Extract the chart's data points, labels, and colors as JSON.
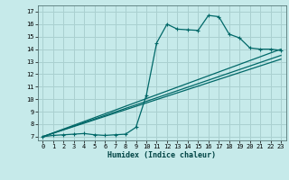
{
  "xlabel": "Humidex (Indice chaleur)",
  "bg_color": "#c6eaea",
  "grid_color": "#aad0d0",
  "line_color": "#006868",
  "xlim": [
    -0.5,
    23.5
  ],
  "ylim": [
    6.7,
    17.5
  ],
  "xticks": [
    0,
    1,
    2,
    3,
    4,
    5,
    6,
    7,
    8,
    9,
    10,
    11,
    12,
    13,
    14,
    15,
    16,
    17,
    18,
    19,
    20,
    21,
    22,
    23
  ],
  "yticks": [
    7,
    8,
    9,
    10,
    11,
    12,
    13,
    14,
    15,
    16,
    17
  ],
  "line1_x": [
    0,
    1,
    2,
    3,
    4,
    5,
    6,
    7,
    8,
    9,
    10,
    11,
    12,
    13,
    14,
    15,
    16,
    17,
    18,
    19,
    20,
    21,
    22,
    23
  ],
  "line1_y": [
    7.0,
    7.1,
    7.15,
    7.2,
    7.25,
    7.15,
    7.1,
    7.15,
    7.2,
    7.75,
    10.3,
    14.5,
    16.0,
    15.6,
    15.55,
    15.5,
    16.7,
    16.6,
    15.2,
    14.9,
    14.1,
    14.0,
    14.0,
    13.9
  ],
  "line2_x": [
    0,
    23
  ],
  "line2_y": [
    7.0,
    14.0
  ],
  "line3_x": [
    0,
    23
  ],
  "line3_y": [
    7.0,
    13.5
  ],
  "line4_x": [
    0,
    23
  ],
  "line4_y": [
    7.0,
    13.2
  ]
}
